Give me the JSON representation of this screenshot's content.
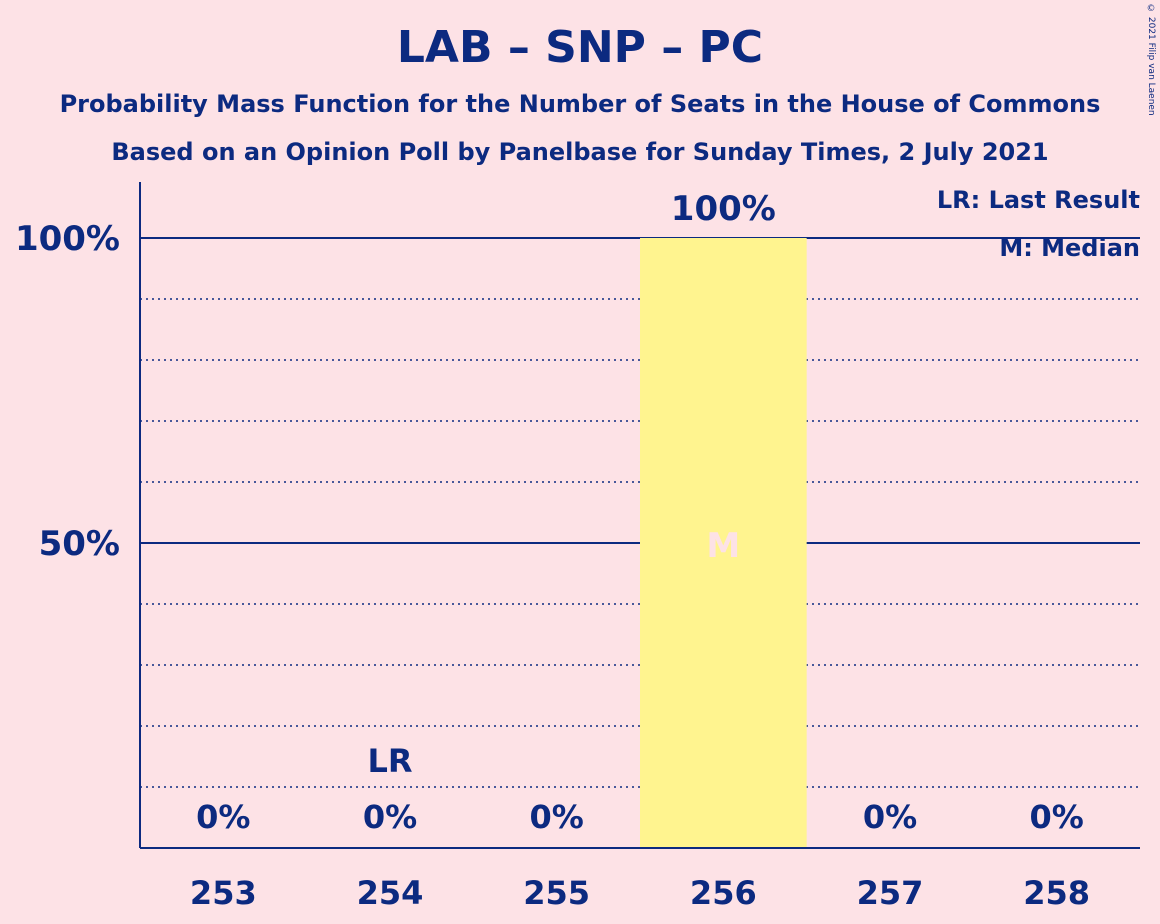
{
  "chart_data": {
    "type": "bar",
    "title": "LAB – SNP – PC",
    "subtitle": "Probability Mass Function for the Number of Seats in the House of Commons",
    "subtitle2": "Based on an Opinion Poll by Panelbase for Sunday Times, 2 July 2021",
    "categories": [
      "253",
      "254",
      "255",
      "256",
      "257",
      "258"
    ],
    "values": [
      0,
      0,
      0,
      100,
      0,
      0
    ],
    "value_labels": [
      "0%",
      "0%",
      "0%",
      "100%",
      "0%",
      "0%"
    ],
    "ylim": [
      0,
      100
    ],
    "yticks": [
      {
        "value": 50,
        "label": "50%"
      },
      {
        "value": 100,
        "label": "100%"
      }
    ],
    "minor_gridlines": [
      10,
      20,
      30,
      40,
      60,
      70,
      80,
      90
    ],
    "last_result": {
      "category": "254",
      "label": "LR"
    },
    "median": {
      "category": "256",
      "label": "M"
    },
    "legend": {
      "last_result": "LR: Last Result",
      "median": "M: Median",
      "placement": "top-right"
    },
    "colors": {
      "bar": "#fff48f",
      "text": "#0c2a80",
      "background": "#fde2e6",
      "median_label": "#fde2e6"
    },
    "copyright": "© 2021 Filip van Laenen"
  }
}
